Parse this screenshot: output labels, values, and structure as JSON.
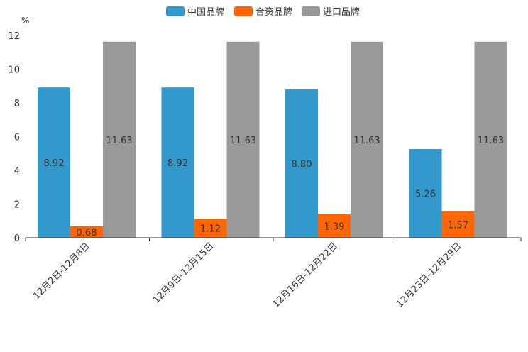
{
  "chart_data": {
    "type": "bar",
    "title": "",
    "ylabel": "%",
    "xlabel": "",
    "ylim": [
      0,
      12
    ],
    "yticks": [
      0,
      2,
      4,
      6,
      8,
      10,
      12
    ],
    "categories": [
      "12月2日-12月8日",
      "12月9日-12月15日",
      "12月16日-12月22日",
      "12月23日-12月29日"
    ],
    "series": [
      {
        "name": "中国品牌",
        "color": "#3399cc",
        "values": [
          8.92,
          8.92,
          8.8,
          5.26
        ],
        "labels": [
          "8.92",
          "8.92",
          "8.80",
          "5.26"
        ]
      },
      {
        "name": "合资品牌",
        "color": "#ff6600",
        "values": [
          0.68,
          1.12,
          1.39,
          1.57
        ],
        "labels": [
          "0.68",
          "1.12",
          "1.39",
          "1.57"
        ]
      },
      {
        "name": "进口品牌",
        "color": "#999999",
        "values": [
          11.63,
          11.63,
          11.63,
          11.63
        ],
        "labels": [
          "11.63",
          "11.63",
          "11.63",
          "11.63"
        ]
      }
    ],
    "legend_position": "top-center",
    "grid": false
  }
}
